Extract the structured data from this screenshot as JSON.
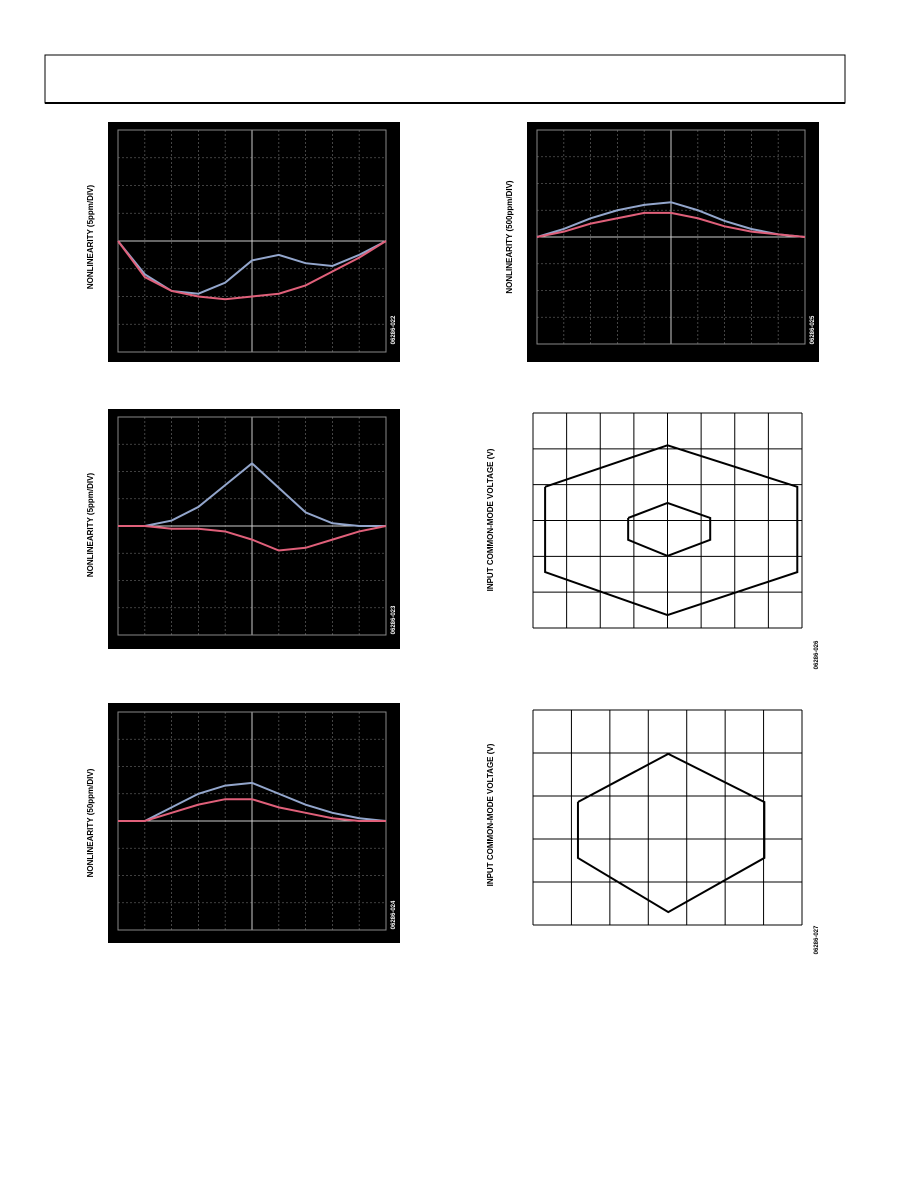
{
  "chart_data": [
    {
      "type": "line",
      "ylabel": "NONLINEARITY (5ppm/DIV)",
      "figure_code": "06286-022",
      "background": "#000000",
      "grid": true,
      "xlim": [
        0,
        10
      ],
      "ylim": [
        0,
        8
      ],
      "x": [
        0,
        1,
        2,
        3,
        4,
        5,
        6,
        7,
        8,
        9,
        10
      ],
      "series": [
        {
          "color": "#93a6cc",
          "values": [
            4,
            2.8,
            2.2,
            2.1,
            2.5,
            3.3,
            3.5,
            3.2,
            3.1,
            3.5,
            4
          ]
        },
        {
          "color": "#e0607a",
          "values": [
            4,
            2.7,
            2.2,
            2.0,
            1.9,
            2.0,
            2.1,
            2.4,
            2.9,
            3.4,
            4
          ]
        }
      ]
    },
    {
      "type": "line",
      "ylabel": "NONLINEARITY (500ppm/DIV)",
      "figure_code": "06286-025",
      "background": "#000000",
      "grid": true,
      "xlim": [
        0,
        10
      ],
      "ylim": [
        0,
        8
      ],
      "x": [
        0,
        1,
        2,
        3,
        4,
        5,
        6,
        7,
        8,
        9,
        10
      ],
      "series": [
        {
          "color": "#93a6cc",
          "values": [
            4,
            4.3,
            4.7,
            5,
            5.2,
            5.3,
            5,
            4.6,
            4.3,
            4.1,
            4
          ]
        },
        {
          "color": "#e0607a",
          "values": [
            4,
            4.2,
            4.5,
            4.7,
            4.9,
            4.9,
            4.7,
            4.4,
            4.2,
            4.1,
            4
          ]
        }
      ]
    },
    {
      "type": "line",
      "ylabel": "NONLINEARITY (5ppm/DIV)",
      "figure_code": "06286-023",
      "background": "#000000",
      "grid": true,
      "xlim": [
        0,
        10
      ],
      "ylim": [
        0,
        8
      ],
      "x": [
        0,
        1,
        2,
        3,
        4,
        5,
        6,
        7,
        8,
        9,
        10
      ],
      "series": [
        {
          "color": "#93a6cc",
          "values": [
            4,
            4,
            4.2,
            4.7,
            5.5,
            6.3,
            5.4,
            4.5,
            4.1,
            4,
            4
          ]
        },
        {
          "color": "#e0607a",
          "values": [
            4,
            4,
            3.9,
            3.9,
            3.8,
            3.5,
            3.1,
            3.2,
            3.5,
            3.8,
            4
          ]
        }
      ]
    },
    {
      "type": "line",
      "ylabel": "INPUT COMMON-MODE VOLTAGE (V)",
      "figure_code": "06286-026",
      "background": "#ffffff",
      "grid": true,
      "xlim": [
        0,
        8
      ],
      "ylim": [
        0,
        6
      ],
      "series": [
        {
          "color": "#000000",
          "x": [
            0.36,
            4,
            7.86,
            7.86,
            4,
            0.36,
            0.36
          ],
          "values": [
            3.94,
            5.1,
            3.94,
            1.56,
            0.36,
            1.56,
            3.94
          ]
        },
        {
          "color": "#000000",
          "x": [
            2.83,
            4,
            5.27,
            5.27,
            4,
            2.83,
            2.83
          ],
          "values": [
            3.07,
            3.49,
            3.07,
            2.46,
            2.01,
            2.46,
            3.07
          ]
        }
      ]
    },
    {
      "type": "line",
      "ylabel": "NONLINEARITY (50ppm/DIV)",
      "figure_code": "06286-024",
      "background": "#000000",
      "grid": true,
      "xlim": [
        0,
        10
      ],
      "ylim": [
        0,
        8
      ],
      "x": [
        0,
        1,
        2,
        3,
        4,
        5,
        6,
        7,
        8,
        9,
        10
      ],
      "series": [
        {
          "color": "#93a6cc",
          "values": [
            4,
            4,
            4.5,
            5,
            5.3,
            5.4,
            5,
            4.6,
            4.3,
            4.1,
            4
          ]
        },
        {
          "color": "#e0607a",
          "values": [
            4,
            4,
            4.3,
            4.6,
            4.8,
            4.8,
            4.5,
            4.3,
            4.1,
            4,
            4
          ]
        }
      ]
    },
    {
      "type": "line",
      "ylabel": "INPUT COMMON-MODE VOLTAGE (V)",
      "figure_code": "06286-027",
      "background": "#ffffff",
      "grid": true,
      "xlim": [
        0,
        7
      ],
      "ylim": [
        0,
        5
      ],
      "series": [
        {
          "color": "#000000",
          "x": [
            1.17,
            3.52,
            6.02,
            6.02,
            3.52,
            1.17,
            1.17
          ],
          "values": [
            2.86,
            3.98,
            2.86,
            1.56,
            0.3,
            1.56,
            2.86
          ]
        }
      ]
    }
  ]
}
